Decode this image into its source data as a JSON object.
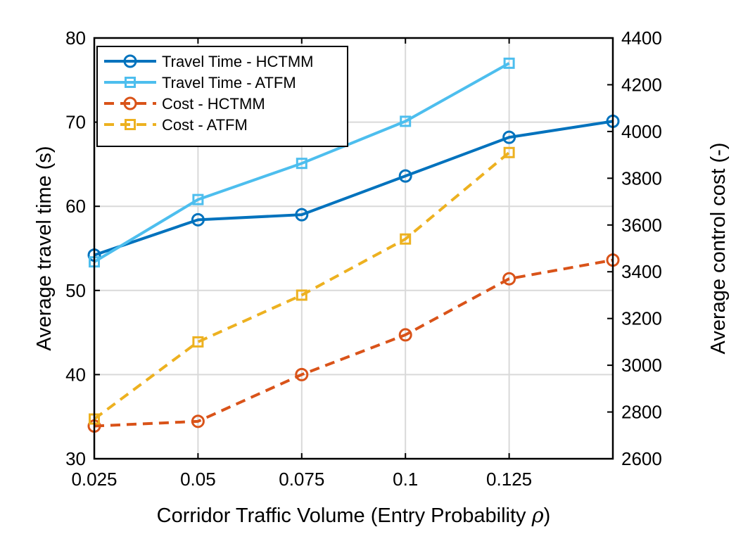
{
  "chart_data": {
    "type": "line",
    "x": [
      0.025,
      0.05,
      0.075,
      0.1,
      0.125,
      0.15
    ],
    "x_tick_labels": [
      "0.025",
      "0.05",
      "0.075",
      "0.1",
      "0.125"
    ],
    "x_ticks": [
      0.025,
      0.05,
      0.075,
      0.1,
      0.125
    ],
    "xlim": [
      0.025,
      0.15
    ],
    "xlabel": "Corridor Traffic Volume (Entry Probability ",
    "xlabel_symbol": "ρ",
    "xlabel_end": ")",
    "ylabel_left": "Average travel time (s)",
    "ylabel_right": "Average control cost (-)",
    "ylim_left": [
      30,
      80
    ],
    "ylim_right": [
      2600,
      4400
    ],
    "y_ticks_left": [
      30,
      40,
      50,
      60,
      70,
      80
    ],
    "y_ticks_right": [
      2600,
      2800,
      3000,
      3200,
      3400,
      3600,
      3800,
      4000,
      4200,
      4400
    ],
    "grid": true,
    "legend_position": "top-left",
    "series": [
      {
        "name": "Travel Time - HCTMM",
        "axis": "left",
        "color": "#0072BD",
        "marker": "circle",
        "dash": false,
        "x": [
          0.025,
          0.05,
          0.075,
          0.1,
          0.125,
          0.15
        ],
        "values": [
          54.2,
          58.4,
          59.0,
          63.6,
          68.2,
          70.1
        ]
      },
      {
        "name": "Travel Time - ATFM",
        "axis": "left",
        "color": "#4DBEEE",
        "marker": "square",
        "dash": false,
        "x": [
          0.025,
          0.05,
          0.075,
          0.1,
          0.125
        ],
        "values": [
          53.4,
          60.8,
          65.1,
          70.1,
          77.0
        ]
      },
      {
        "name": "Cost - HCTMM",
        "axis": "right",
        "color": "#D95319",
        "marker": "circle",
        "dash": true,
        "x": [
          0.025,
          0.05,
          0.075,
          0.1,
          0.125,
          0.15
        ],
        "values": [
          2740,
          2760,
          2960,
          3130,
          3370,
          3450
        ]
      },
      {
        "name": "Cost - ATFM",
        "axis": "right",
        "color": "#EDB120",
        "marker": "square",
        "dash": true,
        "x": [
          0.025,
          0.05,
          0.075,
          0.1,
          0.125
        ],
        "values": [
          2770,
          3100,
          3300,
          3540,
          3910
        ]
      }
    ]
  }
}
